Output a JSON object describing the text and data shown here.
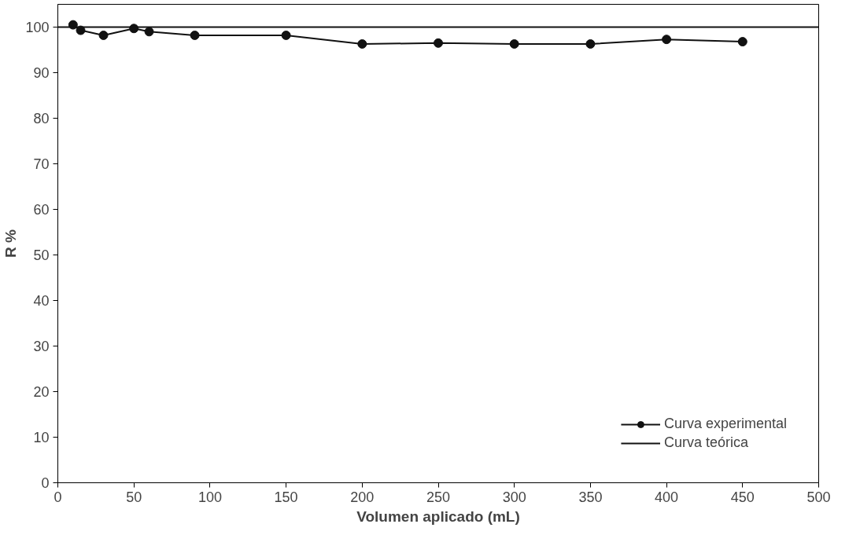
{
  "chart_data": {
    "type": "line",
    "xlabel": "Volumen aplicado (mL)",
    "ylabel": "R %",
    "xlim": [
      0,
      500
    ],
    "xticks": [
      0,
      50,
      100,
      150,
      200,
      250,
      300,
      350,
      400,
      450,
      500
    ],
    "ylim": [
      0,
      105
    ],
    "yticks": [
      0,
      10,
      20,
      30,
      40,
      50,
      60,
      70,
      80,
      90,
      100
    ],
    "grid": false,
    "legend": "bottom right",
    "series": [
      {
        "name": "Curva experimental",
        "color": "#111111",
        "marker": "circle",
        "x": [
          10,
          15,
          30,
          50,
          60,
          90,
          150,
          200,
          250,
          300,
          350,
          400,
          450
        ],
        "values": [
          100.5,
          99.3,
          98.2,
          99.7,
          99.0,
          98.2,
          98.2,
          96.3,
          96.5,
          96.3,
          96.3,
          97.3,
          96.8
        ]
      },
      {
        "name": "Curva teórica",
        "color": "#111111",
        "marker": "none",
        "x": [
          0,
          500
        ],
        "values": [
          100,
          100
        ]
      }
    ]
  }
}
